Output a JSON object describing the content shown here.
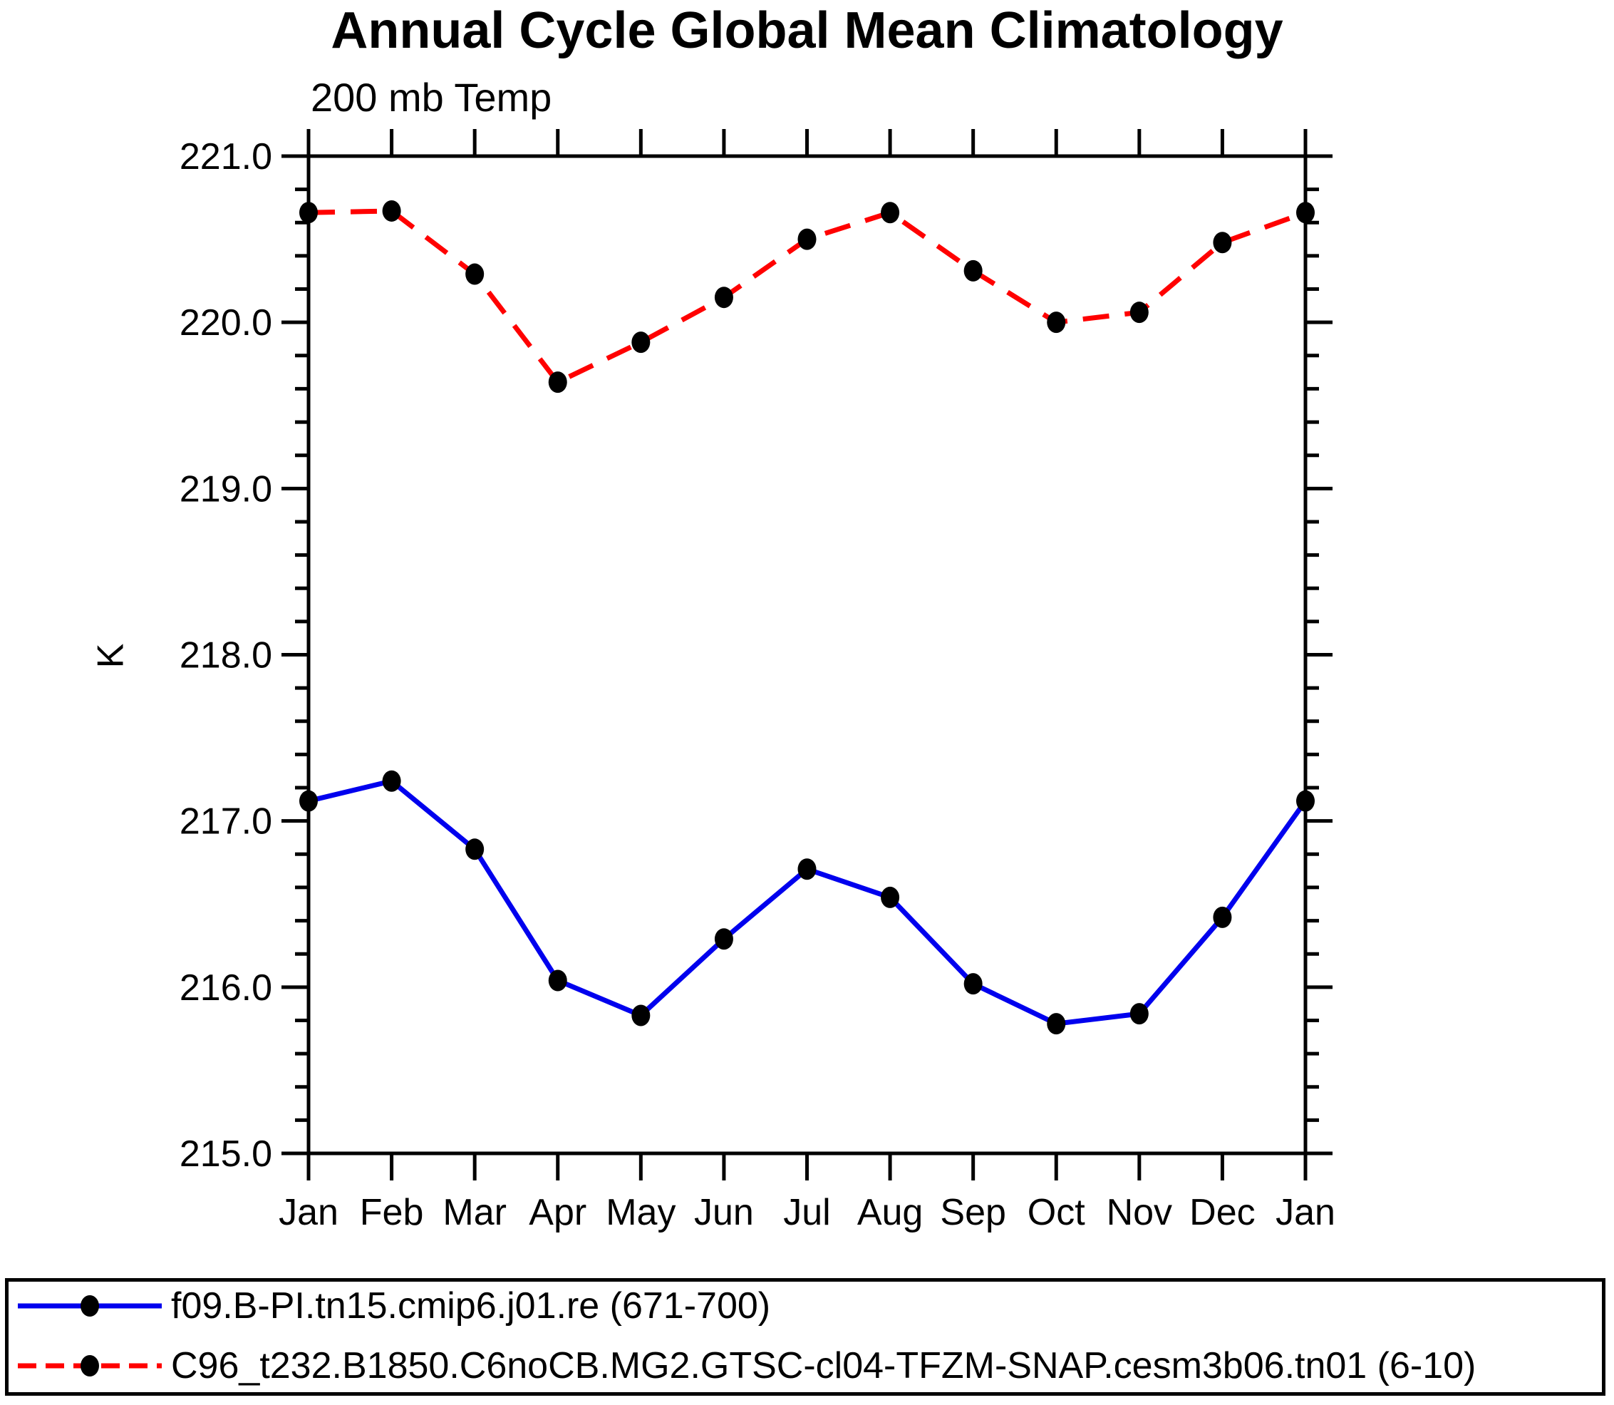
{
  "header": {
    "title": "Annual Cycle Global Mean Climatology",
    "subtitle": "200 mb Temp"
  },
  "colors": {
    "series1": "#0000ee",
    "series2": "#ff0000",
    "marker": "#000000",
    "axis": "#000000",
    "background": "#ffffff"
  },
  "chart_data": {
    "type": "line",
    "title": "Annual Cycle Global Mean Climatology",
    "subtitle": "200 mb Temp",
    "xlabel": "",
    "ylabel": "K",
    "categories": [
      "Jan",
      "Feb",
      "Mar",
      "Apr",
      "May",
      "Jun",
      "Jul",
      "Aug",
      "Sep",
      "Oct",
      "Nov",
      "Dec",
      "Jan"
    ],
    "ylim": [
      215.0,
      221.0
    ],
    "y_major_step": 1.0,
    "y_minor_step": 0.2,
    "y_tick_labels": [
      "215.0",
      "216.0",
      "217.0",
      "218.0",
      "219.0",
      "220.0",
      "221.0"
    ],
    "grid": false,
    "legend_position": "bottom",
    "marker": "filled-circle",
    "series": [
      {
        "name": "f09.B-PI.tn15.cmip6.j01.re (671-700)",
        "color": "#0000ee",
        "style": "solid",
        "values": [
          217.12,
          217.24,
          216.83,
          216.04,
          215.83,
          216.29,
          216.71,
          216.54,
          216.02,
          215.78,
          215.84,
          216.42,
          217.12
        ]
      },
      {
        "name": "C96_t232.B1850.C6noCB.MG2.GTSC-cl04-TFZM-SNAP.cesm3b06.tn01 (6-10)",
        "color": "#ff0000",
        "style": "dashed",
        "values": [
          220.66,
          220.67,
          220.29,
          219.64,
          219.88,
          220.15,
          220.5,
          220.66,
          220.31,
          220.0,
          220.06,
          220.48,
          220.66
        ]
      }
    ]
  }
}
